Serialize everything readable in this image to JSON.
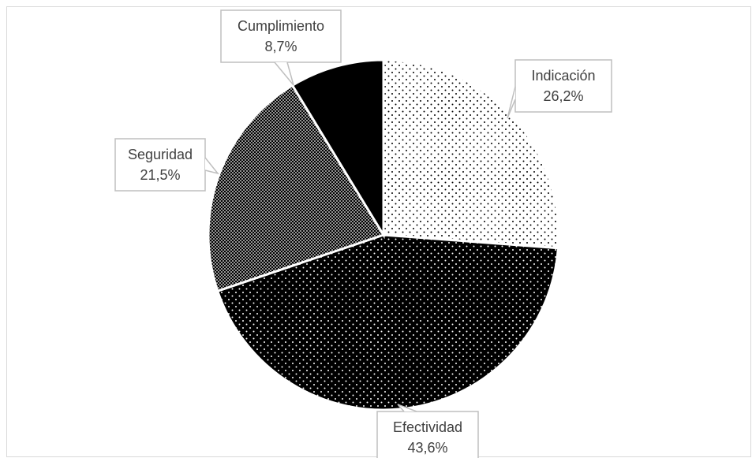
{
  "chart_data": {
    "type": "pie",
    "title": "",
    "slices": [
      {
        "label": "Indicación",
        "value": 26.2,
        "value_label": "26,2%",
        "pattern": "sparse-dots"
      },
      {
        "label": "Efectividad",
        "value": 43.6,
        "value_label": "43,6%",
        "pattern": "dark-dots"
      },
      {
        "label": "Seguridad",
        "value": 21.5,
        "value_label": "21,5%",
        "pattern": "dense-dots"
      },
      {
        "label": "Cumplimiento",
        "value": 8.7,
        "value_label": "8,7%",
        "pattern": "solid-black"
      }
    ],
    "start_angle": "top (12 o'clock)",
    "direction": "clockwise",
    "legend": "none",
    "data_labels": "callouts with category and percentage"
  },
  "colors": {
    "slice_fill_dark": "#000000",
    "slice_fill_light": "#ffffff",
    "separator": "#ffffff",
    "callout_border": "#bfbfbf",
    "callout_text": "#404040",
    "frame_border": "#d9d9d9"
  }
}
